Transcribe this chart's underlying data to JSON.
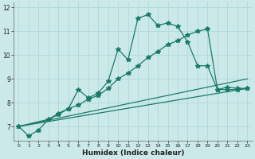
{
  "xlabel": "Humidex (Indice chaleur)",
  "xlim": [
    -0.5,
    23.5
  ],
  "ylim": [
    6.4,
    12.2
  ],
  "yticks": [
    7,
    8,
    9,
    10,
    11,
    12
  ],
  "xticks": [
    0,
    1,
    2,
    3,
    4,
    5,
    6,
    7,
    8,
    9,
    10,
    11,
    12,
    13,
    14,
    15,
    16,
    17,
    18,
    19,
    20,
    21,
    22,
    23
  ],
  "bg_color": "#cce9e9",
  "grid_color": "#b0d8d8",
  "line_color": "#1a7a6a",
  "line1_x": [
    0,
    1,
    2,
    3,
    4,
    5,
    6,
    7,
    8,
    9,
    10,
    11,
    12,
    13,
    14,
    15,
    16,
    17,
    18,
    19,
    20,
    21,
    22,
    23
  ],
  "line1_y": [
    7.0,
    6.6,
    6.85,
    7.3,
    7.5,
    7.75,
    8.55,
    8.2,
    8.4,
    8.9,
    10.25,
    9.8,
    11.55,
    11.7,
    11.25,
    11.35,
    11.2,
    10.55,
    9.55,
    9.55,
    8.55,
    8.55,
    8.55,
    8.6
  ],
  "line2_x": [
    0,
    3,
    4,
    5,
    6,
    7,
    8,
    9,
    10,
    11,
    12,
    13,
    14,
    15,
    16,
    17,
    18,
    19,
    20,
    21,
    22,
    23
  ],
  "line2_y": [
    7.0,
    7.3,
    7.55,
    7.75,
    7.9,
    8.15,
    8.3,
    8.6,
    9.0,
    9.25,
    9.55,
    9.9,
    10.15,
    10.45,
    10.6,
    10.85,
    11.0,
    11.1,
    8.55,
    8.65,
    8.6,
    8.6
  ],
  "line3_x": [
    0,
    23
  ],
  "line3_y": [
    7.0,
    9.0
  ],
  "line4_x": [
    0,
    23
  ],
  "line4_y": [
    7.0,
    8.6
  ],
  "markersize": 3,
  "linewidth": 0.9
}
